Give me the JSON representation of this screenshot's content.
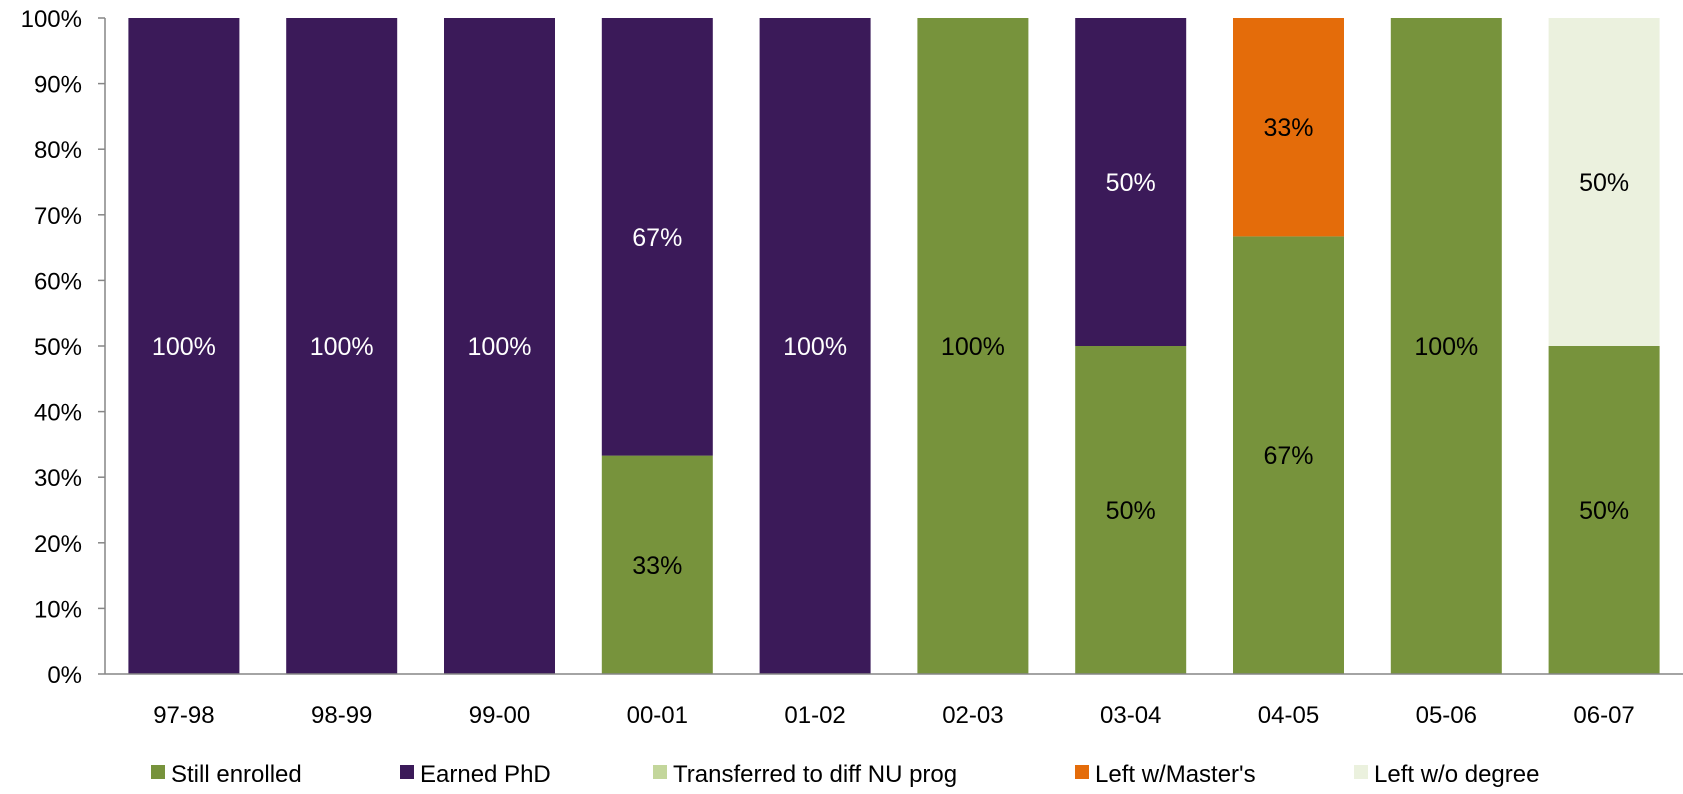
{
  "chart_data": {
    "type": "bar",
    "stacked": true,
    "percent_stacked": true,
    "categories": [
      "97-98",
      "98-99",
      "99-00",
      "00-01",
      "01-02",
      "02-03",
      "03-04",
      "04-05",
      "05-06",
      "06-07"
    ],
    "series": [
      {
        "name": "Still enrolled",
        "color": "#77933C",
        "values": [
          0,
          0,
          0,
          33.3,
          0,
          100,
          50,
          66.7,
          100,
          50
        ],
        "labels": [
          "",
          "",
          "",
          "33%",
          "",
          "100%",
          "50%",
          "67%",
          "100%",
          "50%"
        ],
        "label_color": "#000000"
      },
      {
        "name": "Earned PhD",
        "color": "#3B1A59",
        "values": [
          100,
          100,
          100,
          66.7,
          100,
          0,
          50,
          0,
          0,
          0
        ],
        "labels": [
          "100%",
          "100%",
          "100%",
          "67%",
          "100%",
          "",
          "50%",
          "",
          "",
          ""
        ],
        "label_color": "#FFFFFF"
      },
      {
        "name": "Transferred to diff NU prog",
        "color": "#C3D69B",
        "values": [
          0,
          0,
          0,
          0,
          0,
          0,
          0,
          0,
          0,
          0
        ],
        "labels": [
          "",
          "",
          "",
          "",
          "",
          "",
          "",
          "",
          "",
          ""
        ],
        "label_color": "#000000"
      },
      {
        "name": "Left w/Master's",
        "color": "#E46C0A",
        "values": [
          0,
          0,
          0,
          0,
          0,
          0,
          0,
          33.3,
          0,
          0
        ],
        "labels": [
          "",
          "",
          "",
          "",
          "",
          "",
          "",
          "33%",
          "",
          ""
        ],
        "label_color": "#000000"
      },
      {
        "name": "Left w/o degree",
        "color": "#EBF1DE",
        "values": [
          0,
          0,
          0,
          0,
          0,
          0,
          0,
          0,
          0,
          50
        ],
        "labels": [
          "",
          "",
          "",
          "",
          "",
          "",
          "",
          "",
          "",
          "50%"
        ],
        "label_color": "#000000"
      }
    ],
    "yticks": [
      "0%",
      "10%",
      "20%",
      "30%",
      "40%",
      "50%",
      "60%",
      "70%",
      "80%",
      "90%",
      "100%"
    ],
    "ylim": [
      0,
      100
    ],
    "title": "",
    "xlabel": "",
    "ylabel": "",
    "grid": false,
    "legend_position": "bottom"
  }
}
